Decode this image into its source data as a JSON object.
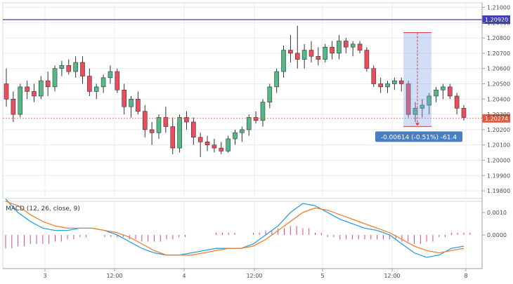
{
  "chart_data": [
    {
      "type": "candlestick",
      "ylim": [
        1.1975,
        1.2103
      ],
      "y_ticks": [
        "1.21000",
        "1.20900",
        "1.20800",
        "1.20700",
        "1.20600",
        "1.20500",
        "1.20400",
        "1.20300",
        "1.20200",
        "1.20100",
        "1.20000",
        "1.19900",
        "1.19800"
      ],
      "x_ticks": [
        "3",
        "12:00",
        "4",
        "12:00",
        "5",
        "12:00",
        "8"
      ],
      "horizontal_line": {
        "value": 1.2092,
        "label": "1.20920",
        "color": "#3f3fbf"
      },
      "last_price": {
        "value": 1.20274,
        "label": "1.20274",
        "color": "#e05a40"
      },
      "measure": {
        "label": "-0.00614 (-0.51%) -61.4",
        "from": 1.20835,
        "to": 1.20221,
        "color": "#4a7ec2"
      },
      "candles": [
        [
          1.205,
          1.206,
          1.2035,
          1.204
        ],
        [
          1.204,
          1.2045,
          1.2025,
          1.203
        ],
        [
          1.203,
          1.205,
          1.2028,
          1.2048
        ],
        [
          1.2048,
          1.2052,
          1.204,
          1.2045
        ],
        [
          1.2045,
          1.205,
          1.2038,
          1.2042
        ],
        [
          1.2042,
          1.2055,
          1.204,
          1.2052
        ],
        [
          1.2052,
          1.2058,
          1.2042,
          1.2048
        ],
        [
          1.2048,
          1.2062,
          1.2045,
          1.206
        ],
        [
          1.206,
          1.2065,
          1.2055,
          1.2062
        ],
        [
          1.2062,
          1.2066,
          1.2056,
          1.2058
        ],
        [
          1.2058,
          1.2068,
          1.2054,
          1.2064
        ],
        [
          1.2064,
          1.2068,
          1.205,
          1.2055
        ],
        [
          1.2055,
          1.206,
          1.2042,
          1.2045
        ],
        [
          1.2045,
          1.205,
          1.204,
          1.2048
        ],
        [
          1.2048,
          1.2056,
          1.2044,
          1.2054
        ],
        [
          1.2054,
          1.2062,
          1.205,
          1.2058
        ],
        [
          1.2058,
          1.206,
          1.2044,
          1.2046
        ],
        [
          1.2046,
          1.205,
          1.203,
          1.2035
        ],
        [
          1.2035,
          1.2042,
          1.2028,
          1.204
        ],
        [
          1.204,
          1.2045,
          1.203,
          1.2032
        ],
        [
          1.2032,
          1.2036,
          1.2015,
          1.202
        ],
        [
          1.202,
          1.2025,
          1.201,
          1.2018
        ],
        [
          1.2018,
          1.203,
          1.2014,
          1.2028
        ],
        [
          1.2028,
          1.2035,
          1.2018,
          1.2022
        ],
        [
          1.2022,
          1.2028,
          1.2004,
          1.2008
        ],
        [
          1.2008,
          1.203,
          1.2005,
          1.2028
        ],
        [
          1.2028,
          1.2032,
          1.202,
          1.2025
        ],
        [
          1.2025,
          1.2028,
          1.201,
          1.2015
        ],
        [
          1.2015,
          1.2018,
          1.2002,
          1.2012
        ],
        [
          1.2012,
          1.2016,
          1.2006,
          1.201
        ],
        [
          1.201,
          1.2014,
          1.2005,
          1.2008
        ],
        [
          1.2008,
          1.2012,
          1.2004,
          1.2006
        ],
        [
          1.2006,
          1.2016,
          1.2005,
          1.2014
        ],
        [
          1.2014,
          1.202,
          1.201,
          1.2018
        ],
        [
          1.2018,
          1.2022,
          1.2012,
          1.202
        ],
        [
          1.202,
          1.203,
          1.2016,
          1.2028
        ],
        [
          1.2028,
          1.2032,
          1.2024,
          1.2026
        ],
        [
          1.2026,
          1.204,
          1.2022,
          1.2038
        ],
        [
          1.2038,
          1.205,
          1.2034,
          1.2048
        ],
        [
          1.2048,
          1.206,
          1.2044,
          1.2058
        ],
        [
          1.2058,
          1.2075,
          1.2054,
          1.2072
        ],
        [
          1.2072,
          1.2082,
          1.2064,
          1.207
        ],
        [
          1.207,
          1.2088,
          1.206,
          1.2066
        ],
        [
          1.2066,
          1.2076,
          1.206,
          1.2072
        ],
        [
          1.2072,
          1.2078,
          1.2064,
          1.2068
        ],
        [
          1.2068,
          1.2074,
          1.2062,
          1.2066
        ],
        [
          1.2066,
          1.2076,
          1.2064,
          1.2074
        ],
        [
          1.2074,
          1.2078,
          1.2066,
          1.207
        ],
        [
          1.207,
          1.2082,
          1.2066,
          1.2078
        ],
        [
          1.2078,
          1.208,
          1.207,
          1.2074
        ],
        [
          1.2074,
          1.2078,
          1.2068,
          1.2076
        ],
        [
          1.2076,
          1.2078,
          1.207,
          1.2072
        ],
        [
          1.2072,
          1.2074,
          1.2058,
          1.206
        ],
        [
          1.206,
          1.2062,
          1.2048,
          1.205
        ],
        [
          1.205,
          1.2054,
          1.2044,
          1.2048
        ],
        [
          1.2048,
          1.2052,
          1.2044,
          1.205
        ],
        [
          1.205,
          1.2054,
          1.2046,
          1.2052
        ],
        [
          1.2052,
          1.2054,
          1.2045,
          1.205
        ],
        [
          1.205,
          1.2052,
          1.2028,
          1.203
        ],
        [
          1.203,
          1.2038,
          1.2025,
          1.2034
        ],
        [
          1.2034,
          1.204,
          1.2028,
          1.2036
        ],
        [
          1.2036,
          1.2044,
          1.203,
          1.2042
        ],
        [
          1.2042,
          1.2048,
          1.2038,
          1.2046
        ],
        [
          1.2046,
          1.205,
          1.204,
          1.2048
        ],
        [
          1.2048,
          1.205,
          1.204,
          1.2042
        ],
        [
          1.2042,
          1.2044,
          1.203,
          1.2034
        ],
        [
          1.2034,
          1.2036,
          1.2026,
          1.2028
        ]
      ]
    },
    {
      "type": "line",
      "title": "MACD (12, 26, close, 9)",
      "ylim": [
        -0.0015,
        0.0015
      ],
      "y_ticks": [
        0.001,
        0.0
      ],
      "y_tick_labels": [
        "0.0010",
        "0.0000"
      ],
      "series": [
        {
          "color": "#2aa0e0",
          "values": [
            0.0016,
            0.001,
            0.0006,
            0.0003,
            0.0002,
            0.0002,
            0.0003,
            0.0003,
            0.0002,
            0.0,
            -0.0003,
            -0.0006,
            -0.0008,
            -0.0009,
            -0.0009,
            -0.0008,
            -0.0007,
            -0.0006,
            -0.0006,
            -0.0006,
            -0.0004,
            0.0,
            0.0004,
            0.001,
            0.0014,
            0.0013,
            0.001,
            0.0007,
            0.0005,
            0.0003,
            0.0002,
            0.0,
            -0.0004,
            -0.0008,
            -0.001,
            -0.0009,
            -0.0006,
            -0.0005
          ]
        },
        {
          "color": "#f08030",
          "values": [
            0.0015,
            0.0013,
            0.0009,
            0.0006,
            0.0004,
            0.0003,
            0.0003,
            0.0003,
            0.0002,
            0.0001,
            -0.0001,
            -0.0004,
            -0.0007,
            -0.0009,
            -0.0009,
            -0.0009,
            -0.0008,
            -0.0007,
            -0.0006,
            -0.0006,
            -0.0005,
            -0.0002,
            0.0002,
            0.0006,
            0.001,
            0.0012,
            0.0011,
            0.0009,
            0.0007,
            0.0005,
            0.0003,
            0.0001,
            -0.0002,
            -0.0005,
            -0.0007,
            -0.0008,
            -0.0007,
            -0.0006
          ]
        }
      ],
      "histogram": {
        "color": "#e0408a",
        "values": [
          -0.0006,
          -0.0005,
          -0.0004,
          -0.0004,
          -0.0003,
          -0.0002,
          -0.0001,
          0.0,
          -0.0001,
          -0.0001,
          -0.0002,
          -0.0003,
          -0.0003,
          -0.0002,
          -0.0001,
          0.0,
          0.0,
          0.0001,
          0.0001,
          0.0,
          0.0001,
          0.0002,
          0.0003,
          0.0004,
          0.0003,
          0.0001,
          -0.0001,
          -0.0002,
          -0.0002,
          -0.0002,
          -0.0002,
          -0.0002,
          -0.0003,
          -0.0004,
          -0.0003,
          -0.0001,
          0.0001,
          0.0001
        ]
      }
    }
  ],
  "colors": {
    "up": "#53b987",
    "down": "#eb4d5c",
    "grid": "#e8ecef",
    "axis": "#9aa0a6"
  }
}
